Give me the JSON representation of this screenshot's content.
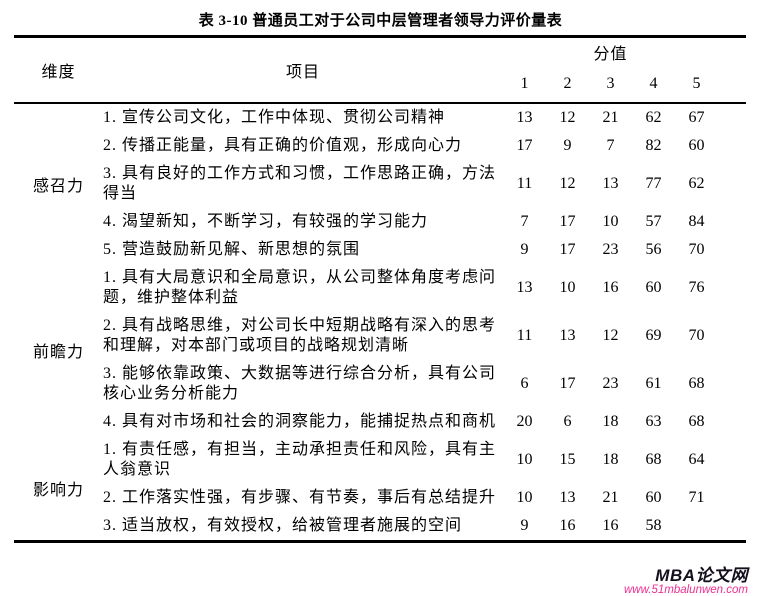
{
  "page": {
    "title": "表 3-10  普通员工对于公司中层管理者领导力评价量表"
  },
  "table": {
    "headers": {
      "dimension": "维度",
      "item": "项目",
      "score": "分值",
      "score_levels": [
        "1",
        "2",
        "3",
        "4",
        "5"
      ]
    },
    "groups": [
      {
        "dimension": "感召力",
        "rows": [
          {
            "item": "1. 宣传公司文化，工作中体现、贯彻公司精神",
            "values": [
              "13",
              "12",
              "21",
              "62",
              "67"
            ]
          },
          {
            "item": "2. 传播正能量，具有正确的价值观，形成向心力",
            "values": [
              "17",
              "9",
              "7",
              "82",
              "60"
            ]
          },
          {
            "item": "3. 具有良好的工作方式和习惯，工作思路正确，方法得当",
            "values": [
              "11",
              "12",
              "13",
              "77",
              "62"
            ]
          },
          {
            "item": "4. 渴望新知，不断学习，有较强的学习能力",
            "values": [
              "7",
              "17",
              "10",
              "57",
              "84"
            ]
          },
          {
            "item": "5. 营造鼓励新见解、新思想的氛围",
            "values": [
              "9",
              "17",
              "23",
              "56",
              "70"
            ]
          }
        ]
      },
      {
        "dimension": "前瞻力",
        "rows": [
          {
            "item": "1. 具有大局意识和全局意识，从公司整体角度考虑问题，维护整体利益",
            "values": [
              "13",
              "10",
              "16",
              "60",
              "76"
            ]
          },
          {
            "item": "2. 具有战略思维，对公司长中短期战略有深入的思考和理解，对本部门或项目的战略规划清晰",
            "values": [
              "11",
              "13",
              "12",
              "69",
              "70"
            ]
          },
          {
            "item": "3. 能够依靠政策、大数据等进行综合分析，具有公司核心业务分析能力",
            "values": [
              "6",
              "17",
              "23",
              "61",
              "68"
            ]
          },
          {
            "item": "4. 具有对市场和社会的洞察能力，能捕捉热点和商机",
            "values": [
              "20",
              "6",
              "18",
              "63",
              "68"
            ]
          }
        ]
      },
      {
        "dimension": "影响力",
        "rows": [
          {
            "item": "1. 有责任感，有担当，主动承担责任和风险，具有主人翁意识",
            "values": [
              "10",
              "15",
              "18",
              "68",
              "64"
            ]
          },
          {
            "item": "2. 工作落实性强，有步骤、有节奏，事后有总结提升",
            "values": [
              "10",
              "13",
              "21",
              "60",
              "71"
            ]
          },
          {
            "item": "3. 适当放权，有效授权，给被管理者施展的空间",
            "values": [
              "9",
              "16",
              "16",
              "58",
              ""
            ]
          }
        ]
      }
    ]
  },
  "watermark": {
    "site_name": "MBA论文网",
    "site_url": "www.51mbalunwen.com",
    "url_color": "#ee2f92"
  }
}
